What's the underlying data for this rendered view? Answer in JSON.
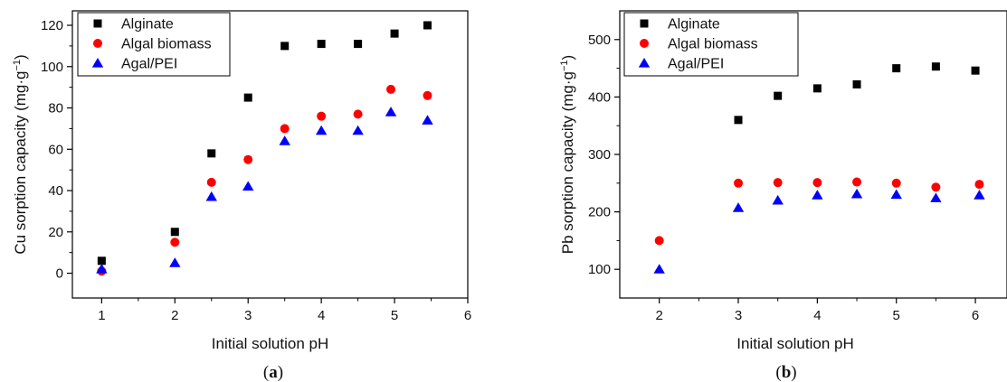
{
  "series_colors": {
    "Alginate": "#000000",
    "Algal biomass": "#ff0000",
    "Agal/PEI": "#0000ff"
  },
  "chart_data": [
    {
      "type": "scatter",
      "panel_label": {
        "open": "(",
        "letter": "a",
        "close": ")"
      },
      "title": "",
      "xlabel": "Initial solution pH",
      "ylabel": "Cu sorption capacity (mg·g",
      "ylabel_sup": "−1",
      "ylabel_close": ")",
      "xlim": [
        0.6,
        6
      ],
      "ylim": [
        -12,
        127
      ],
      "xticks": [
        1,
        2,
        3,
        4,
        5,
        6
      ],
      "yticks": [
        0,
        20,
        40,
        60,
        80,
        100,
        120
      ],
      "legend": "top-left",
      "grid": false,
      "series": [
        {
          "name": "Alginate",
          "marker": "square",
          "x": [
            1,
            2,
            2.5,
            3,
            3.5,
            4,
            4.5,
            5,
            5.45
          ],
          "y": [
            6,
            20,
            58,
            85,
            110,
            111,
            111,
            116,
            120
          ]
        },
        {
          "name": "Algal biomass",
          "marker": "circle",
          "x": [
            1,
            2,
            2.5,
            3,
            3.5,
            4,
            4.5,
            4.95,
            5.45
          ],
          "y": [
            1,
            15,
            44,
            55,
            70,
            76,
            77,
            89,
            86
          ]
        },
        {
          "name": "Agal/PEI",
          "marker": "triangle",
          "x": [
            1,
            2,
            2.5,
            3,
            3.5,
            4,
            4.5,
            4.95,
            5.45
          ],
          "y": [
            2,
            5,
            37,
            42,
            64,
            69,
            69,
            78,
            74
          ]
        }
      ]
    },
    {
      "type": "scatter",
      "panel_label": {
        "open": "(",
        "letter": "b",
        "close": ")"
      },
      "title": "",
      "xlabel": "Initial solution pH",
      "ylabel": "Pb sorption capacity (mg·g",
      "ylabel_sup": "−1",
      "ylabel_close": ")",
      "xlim": [
        1.5,
        6.4
      ],
      "ylim": [
        50,
        550
      ],
      "xticks": [
        2,
        3,
        4,
        5,
        6
      ],
      "yticks": [
        100,
        200,
        300,
        400,
        500
      ],
      "legend": "top-left",
      "grid": false,
      "series": [
        {
          "name": "Alginate",
          "marker": "square",
          "x": [
            3,
            3.5,
            4,
            4.5,
            5,
            5.5,
            6
          ],
          "y": [
            360,
            402,
            415,
            422,
            450,
            453,
            446
          ]
        },
        {
          "name": "Algal biomass",
          "marker": "circle",
          "x": [
            2,
            3,
            3.5,
            4,
            4.5,
            5,
            5.5,
            6.05
          ],
          "y": [
            150,
            250,
            251,
            251,
            252,
            250,
            243,
            248
          ]
        },
        {
          "name": "Agal/PEI",
          "marker": "triangle",
          "x": [
            2,
            3,
            3.5,
            4,
            4.5,
            5,
            5.5,
            6.05
          ],
          "y": [
            100,
            207,
            220,
            229,
            231,
            230,
            224,
            229
          ]
        }
      ]
    }
  ]
}
